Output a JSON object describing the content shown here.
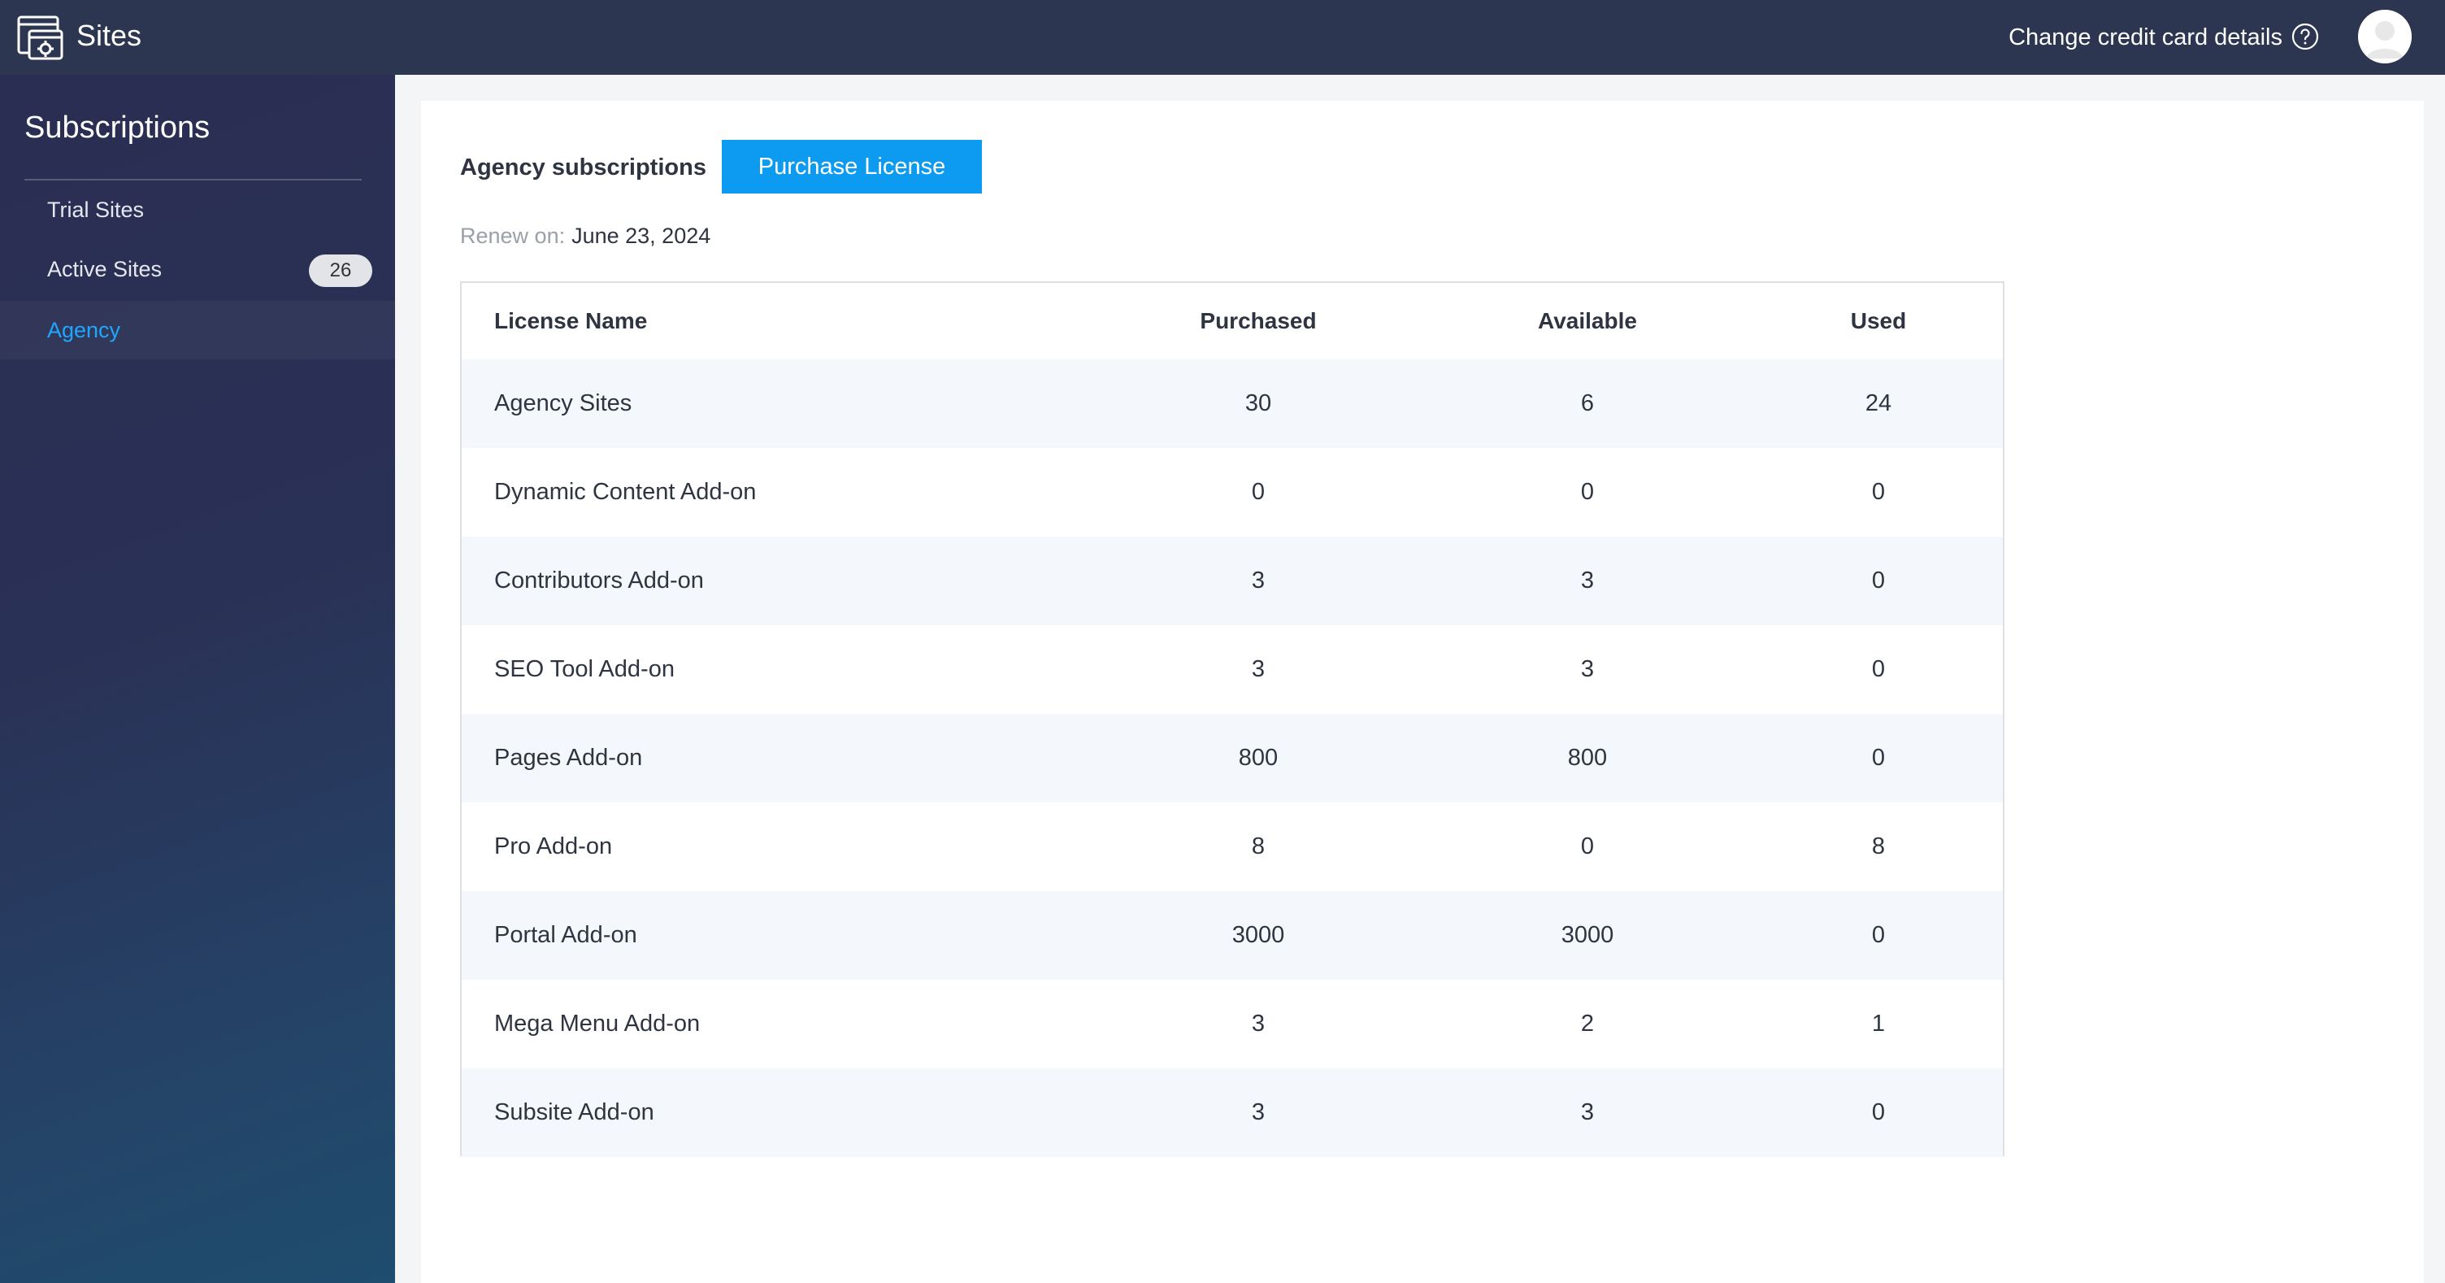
{
  "header": {
    "app_title": "Sites",
    "change_cc_label": "Change credit card details",
    "logo_icon": "sites-logo-icon",
    "help_icon": "help-circle-icon",
    "avatar_icon": "user-avatar-icon"
  },
  "sidebar": {
    "title": "Subscriptions",
    "items": [
      {
        "label": "Trial Sites"
      },
      {
        "label": "Active Sites",
        "badge": "26"
      },
      {
        "label": "Agency",
        "active": true
      }
    ]
  },
  "main": {
    "section_title": "Agency subscriptions",
    "purchase_label": "Purchase License",
    "renew_label": "Renew on:",
    "renew_date": "June 23, 2024",
    "table": {
      "headers": [
        "License Name",
        "Purchased",
        "Available",
        "Used"
      ],
      "rows": [
        [
          "Agency Sites",
          "30",
          "6",
          "24"
        ],
        [
          "Dynamic Content Add-on",
          "0",
          "0",
          "0"
        ],
        [
          "Contributors Add-on",
          "3",
          "3",
          "0"
        ],
        [
          "SEO Tool Add-on",
          "3",
          "3",
          "0"
        ],
        [
          "Pages Add-on",
          "800",
          "800",
          "0"
        ],
        [
          "Pro Add-on",
          "8",
          "0",
          "8"
        ],
        [
          "Portal Add-on",
          "3000",
          "3000",
          "0"
        ],
        [
          "Mega Menu Add-on",
          "3",
          "2",
          "1"
        ],
        [
          "Subsite Add-on",
          "3",
          "3",
          "0"
        ]
      ]
    }
  },
  "colors": {
    "topbar": "#2c3650",
    "accent": "#0d9bf2",
    "active_link": "#1ea7ff"
  }
}
